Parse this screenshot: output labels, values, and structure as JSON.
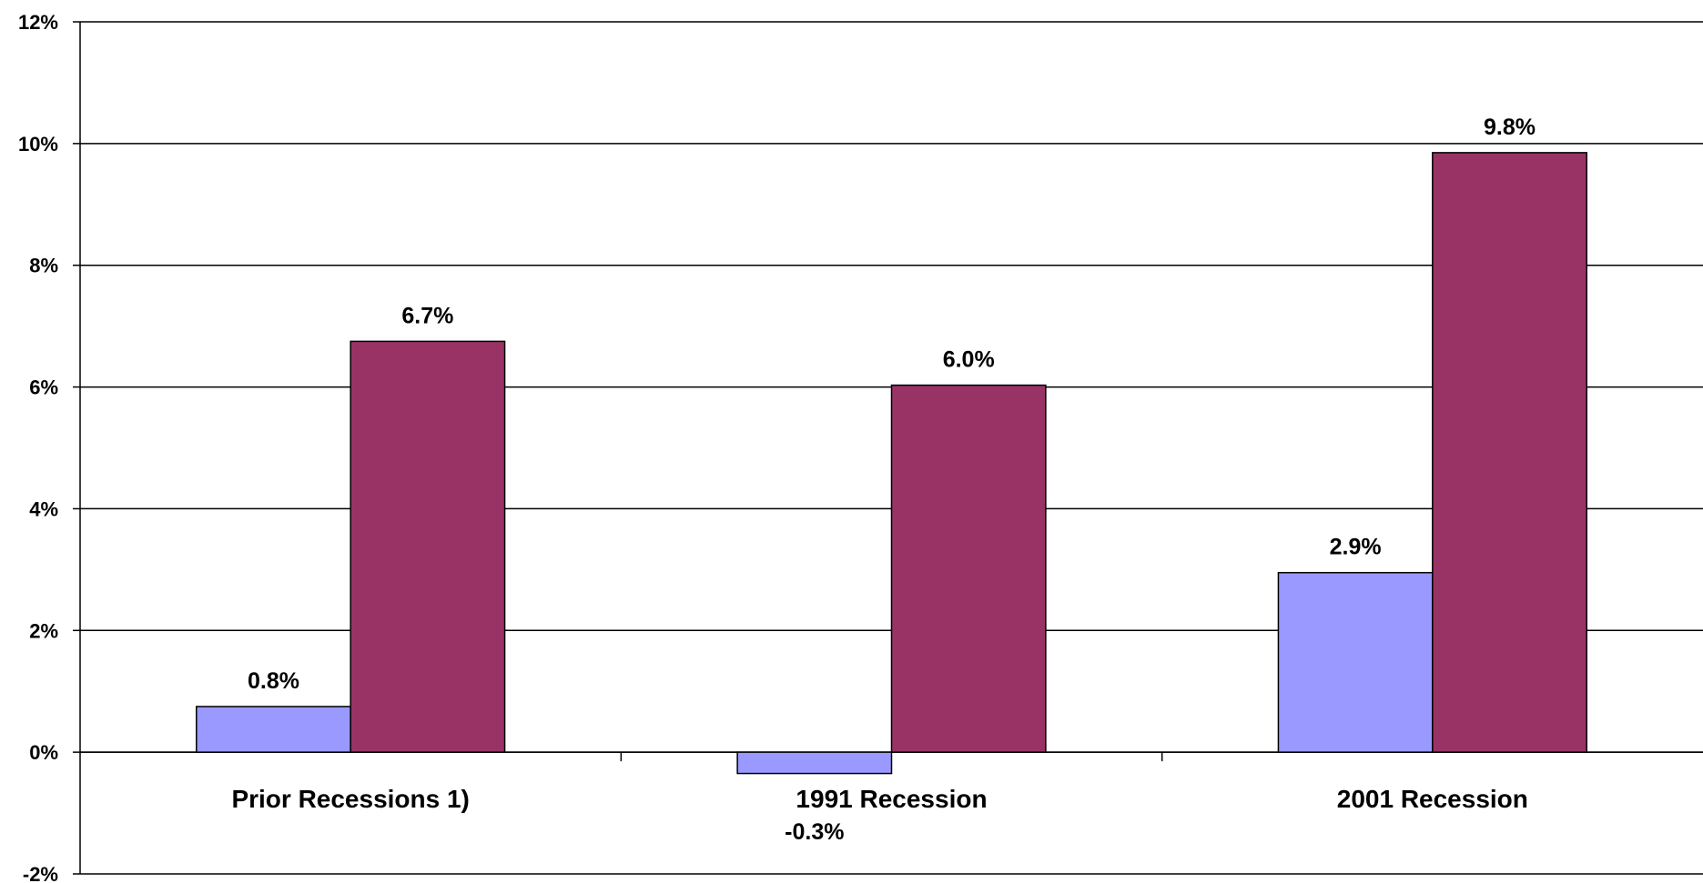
{
  "chart_data": {
    "type": "bar",
    "categories": [
      "Prior Recessions 1)",
      "1991 Recession",
      "2001 Recession"
    ],
    "series": [
      {
        "color": "#9999FF",
        "values": [
          0.75,
          -0.35,
          2.95
        ],
        "labels": [
          "0.8%",
          "-0.3%",
          "2.9%"
        ]
      },
      {
        "color": "#993366",
        "values": [
          6.75,
          6.03,
          9.85
        ],
        "labels": [
          "6.7%",
          "6.0%",
          "9.8%"
        ]
      }
    ],
    "title": "",
    "xlabel": "",
    "ylabel": "",
    "ylim": [
      -2,
      12
    ],
    "y_ticks": [
      -2,
      0,
      2,
      4,
      6,
      8,
      10,
      12
    ],
    "y_tick_labels": [
      "-2%",
      "0%",
      "2%",
      "4%",
      "6%",
      "8%",
      "10%",
      "12%"
    ],
    "grid": true,
    "legend": "none"
  }
}
